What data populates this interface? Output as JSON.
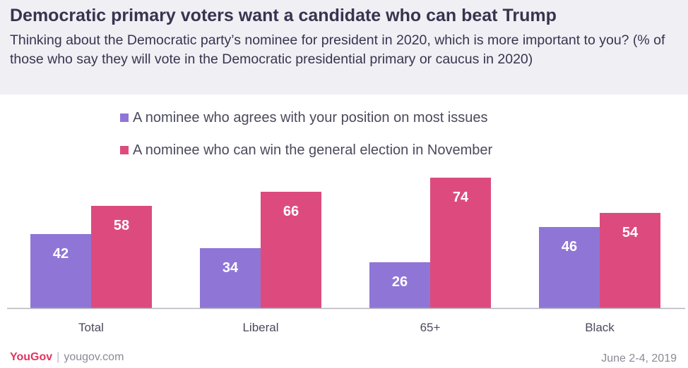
{
  "header": {
    "title": "Democratic primary voters want a candidate who can beat Trump",
    "subtitle": "Thinking about the Democratic party’s nominee for president in 2020, which is more important to you? (% of those who say they will vote in the Democratic presidential primary or caucus in 2020)"
  },
  "footer": {
    "brand": "YouGov",
    "separator": "|",
    "site": "yougov.com",
    "date": "June 2-4, 2019"
  },
  "chart_data": {
    "type": "bar",
    "categories": [
      "Total",
      "Liberal",
      "65+",
      "Black"
    ],
    "series": [
      {
        "name": "A nominee who agrees with your position on most issues",
        "values": [
          42,
          34,
          26,
          46
        ],
        "color": "#8f76d6"
      },
      {
        "name": "A nominee who can win the general election in November",
        "values": [
          58,
          66,
          74,
          54
        ],
        "color": "#dd4b7e"
      }
    ],
    "ylim": [
      0,
      80
    ],
    "grid": false,
    "legend": "top-left",
    "data_labels": true
  }
}
